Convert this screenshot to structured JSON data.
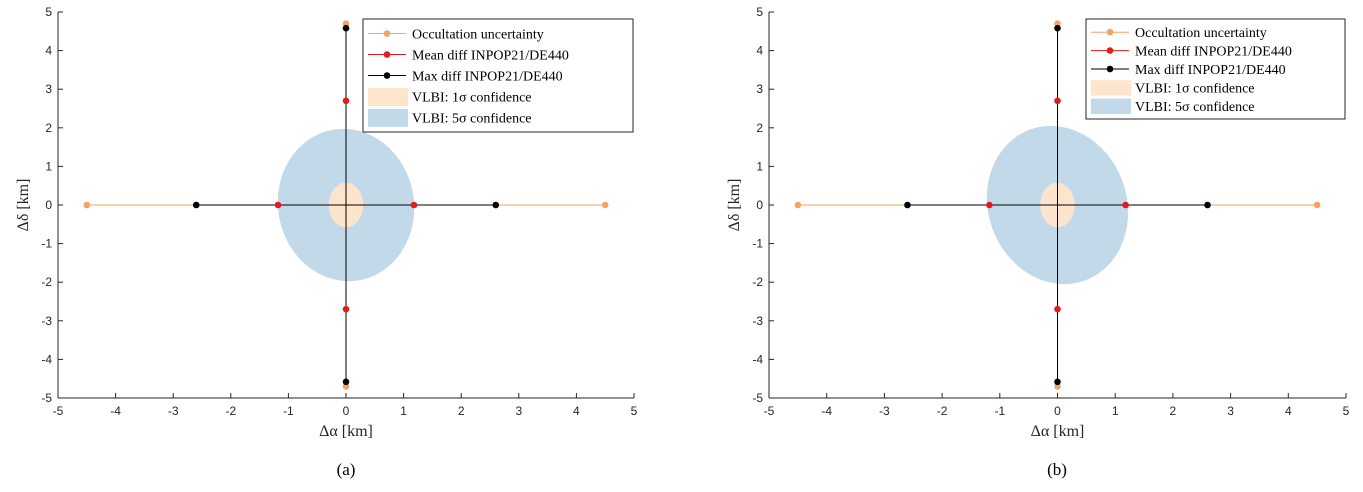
{
  "chart_data": [
    {
      "type": "scatter",
      "panel_label": "(a)",
      "xlabel": "Δα [km]",
      "ylabel": "Δδ [km]",
      "xlim": [
        -5,
        5
      ],
      "ylim": [
        -5,
        5
      ],
      "xticks": [
        -5,
        -4,
        -3,
        -2,
        -1,
        0,
        1,
        2,
        3,
        4,
        5
      ],
      "yticks": [
        -5,
        -4,
        -3,
        -2,
        -1,
        0,
        1,
        2,
        3,
        4,
        5
      ],
      "grid": false,
      "legend_position": "top-right",
      "series": [
        {
          "name": "Occultation uncertainty",
          "kind": "cross",
          "color": "#F4A460",
          "x": [
            -4.5,
            4.5
          ],
          "y": [
            -4.7,
            4.7
          ]
        },
        {
          "name": "Mean diff INPOP21/DE440",
          "kind": "cross",
          "color": "#E41A1C",
          "x": [
            -1.18,
            1.18
          ],
          "y": [
            -2.7,
            2.7
          ]
        },
        {
          "name": "Max diff INPOP21/DE440",
          "kind": "cross",
          "color": "#000000",
          "x": [
            -2.6,
            2.6
          ],
          "y": [
            -4.58,
            4.58
          ]
        }
      ],
      "regions": [
        {
          "name": "VLBI: 1σ confidence",
          "color": "#FDE4CC",
          "center": [
            0,
            0
          ],
          "semi_axes": [
            0.3,
            0.58
          ],
          "angle_deg": 0
        },
        {
          "name": "VLBI: 5σ confidence",
          "color": "#C2D9EA",
          "center": [
            0,
            0
          ],
          "semi_axes": [
            1.18,
            1.98
          ],
          "angle_deg": 10
        }
      ]
    },
    {
      "type": "scatter",
      "panel_label": "(b)",
      "xlabel": "Δα [km]",
      "ylabel": "Δδ [km]",
      "xlim": [
        -5,
        5
      ],
      "ylim": [
        -5,
        5
      ],
      "xticks": [
        -5,
        -4,
        -3,
        -2,
        -1,
        0,
        1,
        2,
        3,
        4,
        5
      ],
      "yticks": [
        -5,
        -4,
        -3,
        -2,
        -1,
        0,
        1,
        2,
        3,
        4,
        5
      ],
      "grid": false,
      "legend_position": "top-right",
      "series": [
        {
          "name": "Occultation uncertainty",
          "kind": "cross",
          "color": "#F4A460",
          "x": [
            -4.5,
            4.5
          ],
          "y": [
            -4.7,
            4.7
          ]
        },
        {
          "name": "Mean diff INPOP21/DE440",
          "kind": "cross",
          "color": "#E41A1C",
          "x": [
            -1.18,
            1.18
          ],
          "y": [
            -2.7,
            2.7
          ]
        },
        {
          "name": "Max diff INPOP21/DE440",
          "kind": "cross",
          "color": "#000000",
          "x": [
            -2.6,
            2.6
          ],
          "y": [
            -4.58,
            4.58
          ]
        }
      ],
      "regions": [
        {
          "name": "VLBI: 1σ confidence",
          "color": "#FDE4CC",
          "center": [
            0,
            0
          ],
          "semi_axes": [
            0.3,
            0.58
          ],
          "angle_deg": 0
        },
        {
          "name": "VLBI: 5σ confidence",
          "color": "#C2D9EA",
          "center": [
            0,
            0
          ],
          "semi_axes": [
            1.2,
            2.08
          ],
          "angle_deg": 20
        }
      ]
    }
  ]
}
